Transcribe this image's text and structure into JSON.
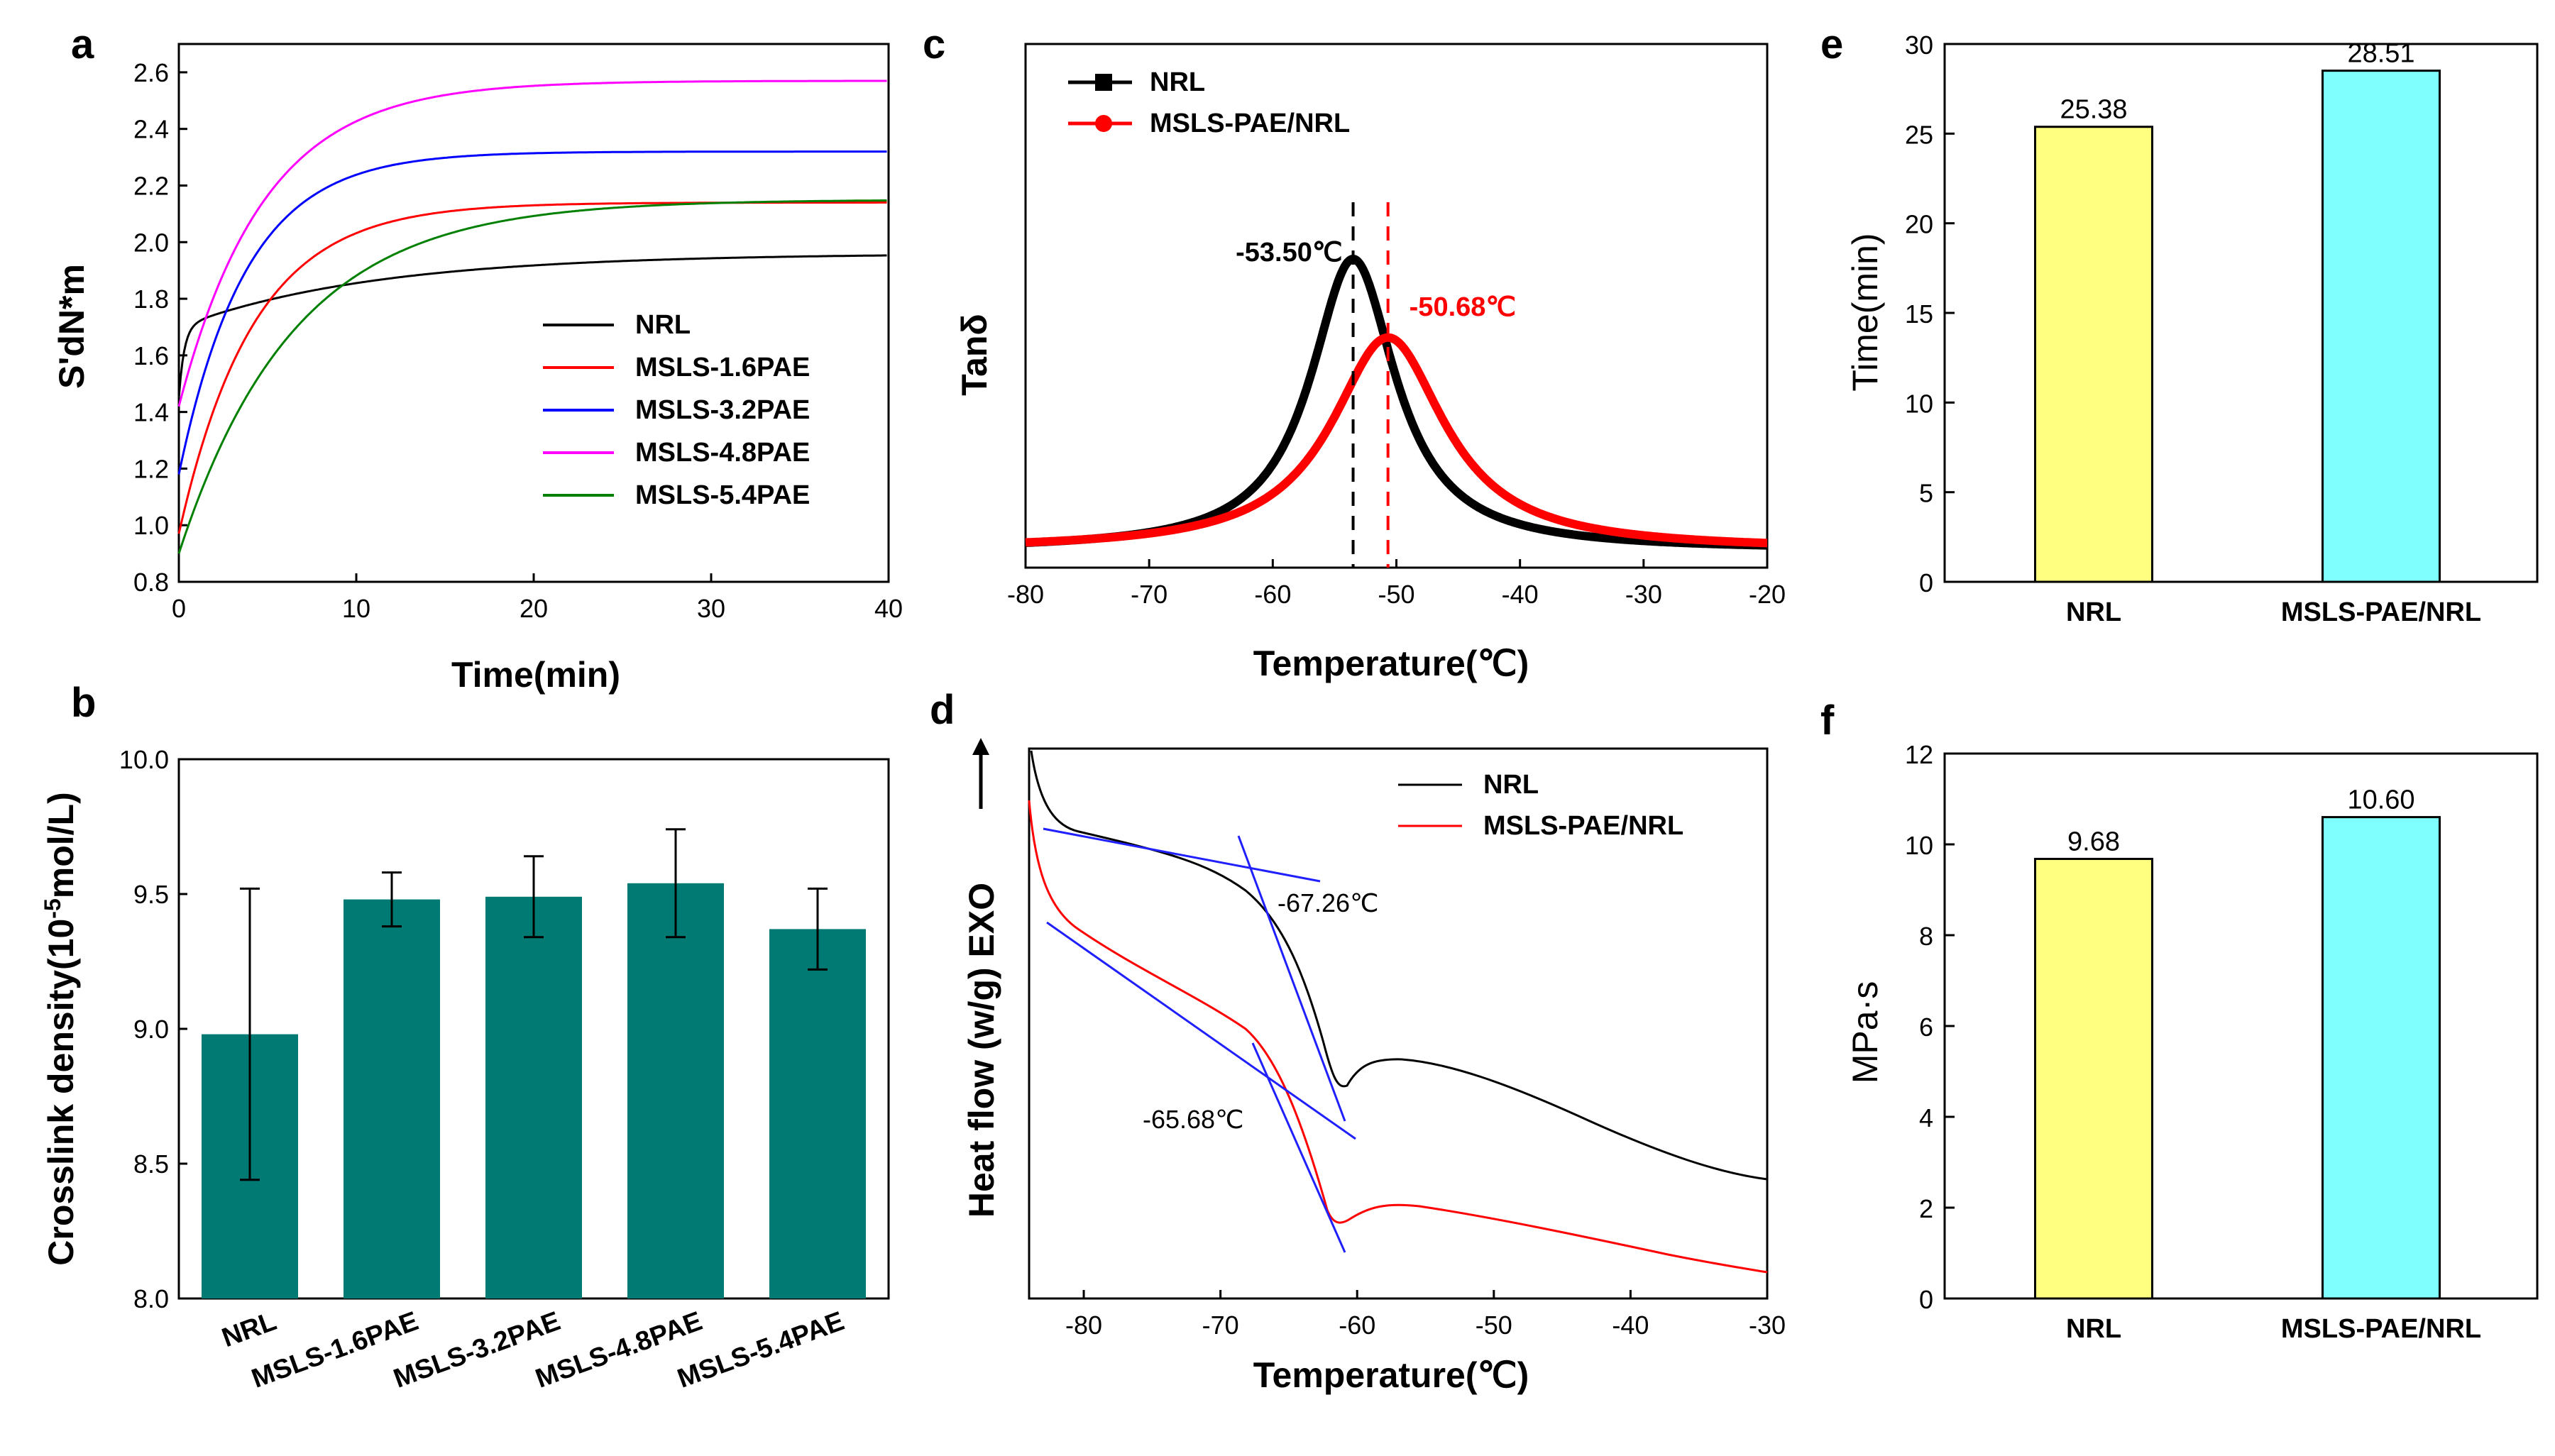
{
  "chart_data": [
    {
      "id": "a",
      "panel_label": "a",
      "type": "line",
      "xlabel": "Time(min)",
      "ylabel": "S'dN*m",
      "xlim": [
        0,
        40
      ],
      "ylim": [
        0.8,
        2.7
      ],
      "xticks": [
        "0",
        "10",
        "20",
        "30",
        "40"
      ],
      "yticks": [
        "0.8",
        "1.0",
        "1.2",
        "1.4",
        "1.6",
        "1.8",
        "2.0",
        "2.2",
        "2.4",
        "2.6"
      ],
      "legend_position": "lower-right",
      "series": [
        {
          "name": "NRL",
          "color": "#000000",
          "start": 1.45,
          "knee": 1.7,
          "end": 1.96,
          "tau": 0.3,
          "slope_end": 40
        },
        {
          "name": "MSLS-1.6PAE",
          "color": "#ff0000",
          "start": 0.97,
          "end": 2.14,
          "tau": 4.2
        },
        {
          "name": "MSLS-3.2PAE",
          "color": "#0000ff",
          "start": 1.18,
          "end": 2.32,
          "tau": 3.8
        },
        {
          "name": "MSLS-4.8PAE",
          "color": "#ff00ff",
          "start": 1.42,
          "end": 2.57,
          "tau": 4.8
        },
        {
          "name": "MSLS-5.4PAE",
          "color": "#008000",
          "start": 0.9,
          "end": 2.15,
          "tau": 6.5
        }
      ]
    },
    {
      "id": "b",
      "panel_label": "b",
      "type": "bar",
      "ylabel": "Crosslink density(10",
      "ylabel_sup": "-5",
      "ylabel_tail": "mol/L)",
      "ylim": [
        8.0,
        10.0
      ],
      "yticks": [
        "8.0",
        "8.5",
        "9.0",
        "9.5",
        "10.0"
      ],
      "categories": [
        "NRL",
        "MSLS-1.6PAE",
        "MSLS-3.2PAE",
        "MSLS-4.8PAE",
        "MSLS-5.4PAE"
      ],
      "values": [
        8.98,
        9.48,
        9.49,
        9.54,
        9.37
      ],
      "errors": [
        0.54,
        0.1,
        0.15,
        0.2,
        0.15
      ],
      "bar_color": "#007a72"
    },
    {
      "id": "c",
      "panel_label": "c",
      "type": "line",
      "xlabel": "Temperature(℃)",
      "ylabel": "Tanδ",
      "xlim": [
        -80,
        -20
      ],
      "xticks": [
        "-80",
        "-70",
        "-60",
        "-50",
        "-40",
        "-30",
        "-20"
      ],
      "series": [
        {
          "name": "NRL",
          "color": "#000000",
          "peak_x": -53.5,
          "peak_y": 1.0,
          "width": 4.2
        },
        {
          "name": "MSLS-PAE/NRL",
          "color": "#ff0000",
          "peak_x": -50.68,
          "peak_y": 0.73,
          "width": 5.6
        }
      ],
      "annotations": [
        {
          "text": "-53.50℃",
          "x": -53.5,
          "color": "#000000"
        },
        {
          "text": "-50.68℃",
          "x": -50.68,
          "color": "#ff0000"
        }
      ]
    },
    {
      "id": "d",
      "panel_label": "d",
      "type": "line",
      "xlabel": "Temperature(℃)",
      "ylabel": "Heat flow (w/g) EXO",
      "xlim": [
        -84,
        -30
      ],
      "xticks": [
        "-80",
        "-70",
        "-60",
        "-50",
        "-40",
        "-30"
      ],
      "series": [
        {
          "name": "NRL",
          "color": "#000000"
        },
        {
          "name": "MSLS-PAE/NRL",
          "color": "#ff0000"
        }
      ],
      "annotations": [
        {
          "text": "-67.26℃",
          "color": "#0000cc"
        },
        {
          "text": "-65.68℃",
          "color": "#0000cc"
        }
      ]
    },
    {
      "id": "e",
      "panel_label": "e",
      "type": "bar",
      "ylabel": "Time(min)",
      "ylim": [
        0,
        30
      ],
      "yticks": [
        "0",
        "5",
        "10",
        "15",
        "20",
        "25",
        "30"
      ],
      "categories": [
        "NRL",
        "MSLS-PAE/NRL"
      ],
      "values": [
        25.38,
        28.51
      ],
      "value_labels": [
        "25.38",
        "28.51"
      ],
      "colors": [
        "#ffff80",
        "#80ffff"
      ]
    },
    {
      "id": "f",
      "panel_label": "f",
      "type": "bar",
      "ylabel": "MPa·s",
      "ylim": [
        0,
        12
      ],
      "yticks": [
        "0",
        "2",
        "4",
        "6",
        "8",
        "10",
        "12"
      ],
      "categories": [
        "NRL",
        "MSLS-PAE/NRL"
      ],
      "values": [
        9.68,
        10.6
      ],
      "value_labels": [
        "9.68",
        "10.60"
      ],
      "colors": [
        "#ffff80",
        "#80ffff"
      ]
    }
  ]
}
